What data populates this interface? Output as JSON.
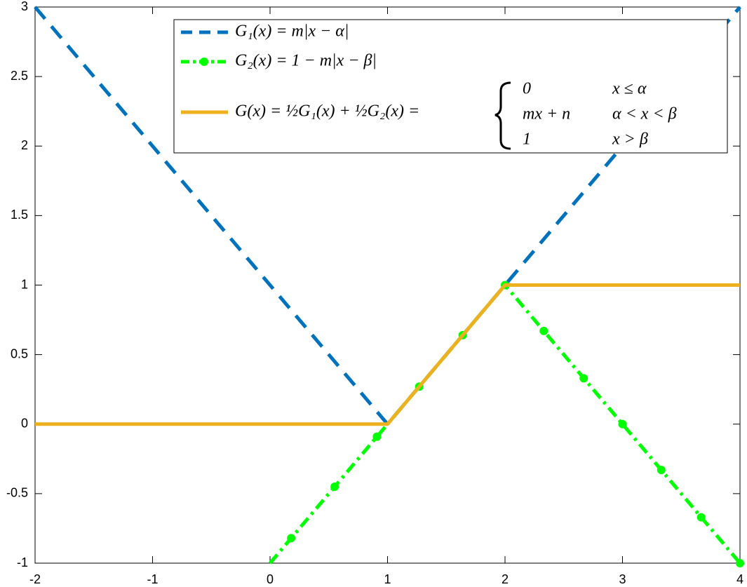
{
  "chart_data": {
    "type": "line",
    "xlim": [
      -2,
      4
    ],
    "ylim": [
      -1,
      3
    ],
    "xticks": [
      -2,
      -1,
      0,
      1,
      2,
      3,
      4
    ],
    "yticks": [
      -1,
      -0.5,
      0,
      0.5,
      1,
      1.5,
      2,
      2.5,
      3
    ],
    "legend": "upper right",
    "series": [
      {
        "name": "G₁(x) = m|x − α|",
        "color": "#0072BD",
        "style": "dashed",
        "x": [
          -2,
          1,
          4
        ],
        "values": [
          3,
          0,
          3
        ]
      },
      {
        "name": "G₂(x) = 1 − m|x − β|",
        "color": "#00FF00",
        "style": "dashdot",
        "x": [
          0,
          2,
          4
        ],
        "values": [
          -1,
          1,
          -1
        ],
        "marker_x": [
          0.18,
          0.55,
          0.91,
          1.27,
          1.64,
          2,
          2.33,
          2.67,
          3,
          3.33,
          3.67,
          4
        ],
        "marker_values": [
          -0.82,
          -0.45,
          -0.09,
          0.27,
          0.64,
          1,
          0.67,
          0.33,
          0,
          -0.33,
          -0.67,
          -1
        ]
      },
      {
        "name": "G(x) = ½G₁(x) + ½G₂(x) =",
        "color": "#EDB120",
        "style": "solid",
        "x": [
          -2,
          1,
          2,
          4
        ],
        "values": [
          0,
          0,
          1,
          1
        ],
        "cases": [
          [
            "0",
            "x ≤ α"
          ],
          [
            "mx + n",
            "α < x < β"
          ],
          [
            "1",
            "x > β"
          ]
        ]
      }
    ]
  }
}
